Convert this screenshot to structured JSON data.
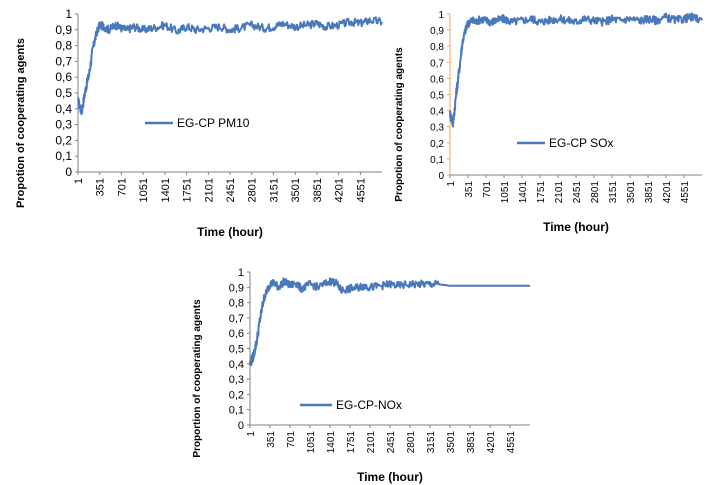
{
  "chart_data": [
    {
      "type": "line",
      "xlabel": "Time (hour)",
      "ylabel": "Propotion of cooperating  agents",
      "ylim": [
        0,
        1
      ],
      "yticks": [
        "0",
        "0,1",
        "0,2",
        "0,3",
        "0,4",
        "0,5",
        "0,6",
        "0,7",
        "0,8",
        "0,9",
        "1"
      ],
      "xticks": [
        "1",
        "351",
        "701",
        "1051",
        "1401",
        "1751",
        "2101",
        "2451",
        "2801",
        "3151",
        "3501",
        "3851",
        "4201",
        "4551"
      ],
      "xlim": [
        1,
        4900
      ],
      "legend_position": "center",
      "grid": false,
      "series": [
        {
          "name": "EG-CP PM10",
          "color": "#4a78bd",
          "x": [
            1,
            60,
            120,
            180,
            240,
            300,
            351,
            420,
            500,
            600,
            701,
            800,
            900,
            1051,
            1200,
            1401,
            1600,
            1751,
            1900,
            2101,
            2300,
            2451,
            2600,
            2801,
            3000,
            3151,
            3300,
            3501,
            3700,
            3851,
            4000,
            4201,
            4400,
            4551,
            4700,
            4900
          ],
          "y": [
            0.45,
            0.38,
            0.52,
            0.62,
            0.78,
            0.88,
            0.93,
            0.92,
            0.9,
            0.93,
            0.91,
            0.9,
            0.92,
            0.9,
            0.91,
            0.93,
            0.89,
            0.92,
            0.9,
            0.91,
            0.92,
            0.9,
            0.91,
            0.93,
            0.91,
            0.92,
            0.94,
            0.92,
            0.93,
            0.94,
            0.92,
            0.93,
            0.95,
            0.94,
            0.96,
            0.95
          ]
        }
      ]
    },
    {
      "type": "line",
      "xlabel": "Time (hour)",
      "ylabel": "Propotion of cooperating agents",
      "ylim": [
        0,
        1
      ],
      "yticks": [
        "0",
        "0,1",
        "0,2",
        "0,3",
        "0,4",
        "0,5",
        "0,6",
        "0,7",
        "0,8",
        "0,9",
        "1"
      ],
      "xticks": [
        "1",
        "351",
        "701",
        "1051",
        "1401",
        "1751",
        "2101",
        "2451",
        "2801",
        "3151",
        "3501",
        "3851",
        "4201",
        "4551"
      ],
      "xlim": [
        1,
        4900
      ],
      "legend_position": "right",
      "grid": false,
      "series": [
        {
          "name": "EG-CP SOx",
          "color": "#4a78bd",
          "x": [
            1,
            60,
            120,
            180,
            240,
            300,
            351,
            420,
            500,
            600,
            701,
            800,
            900,
            1051,
            1200,
            1401,
            1600,
            1751,
            1900,
            2101,
            2300,
            2451,
            2600,
            2801,
            3000,
            3151,
            3300,
            3501,
            3700,
            3851,
            4000,
            4201,
            4400,
            4551,
            4700,
            4900
          ],
          "y": [
            0.38,
            0.32,
            0.5,
            0.65,
            0.82,
            0.9,
            0.94,
            0.96,
            0.95,
            0.97,
            0.96,
            0.95,
            0.96,
            0.97,
            0.95,
            0.96,
            0.97,
            0.95,
            0.96,
            0.97,
            0.96,
            0.95,
            0.97,
            0.96,
            0.95,
            0.97,
            0.96,
            0.97,
            0.96,
            0.97,
            0.96,
            0.98,
            0.96,
            0.97,
            0.98,
            0.96
          ]
        }
      ]
    },
    {
      "type": "line",
      "xlabel": "Time (hour)",
      "ylabel": "Proportion of cooperating agents",
      "ylim": [
        0,
        1
      ],
      "yticks": [
        "0",
        "0,1",
        "0,2",
        "0,3",
        "0,4",
        "0,5",
        "0,6",
        "0,7",
        "0,8",
        "0,9",
        "1"
      ],
      "xticks": [
        "1",
        "351",
        "701",
        "1051",
        "1401",
        "1751",
        "2101",
        "2451",
        "2801",
        "3151",
        "3501",
        "3851",
        "4201",
        "4551"
      ],
      "xlim": [
        1,
        4900
      ],
      "legend_position": "bottom",
      "grid": false,
      "series": [
        {
          "name": "EG-CP-NOx",
          "color": "#4a78bd",
          "x": [
            1,
            60,
            120,
            180,
            240,
            300,
            351,
            420,
            500,
            600,
            701,
            800,
            900,
            1051,
            1200,
            1401,
            1500,
            1600,
            1751,
            1900,
            2000,
            2101,
            2300,
            2451,
            2600,
            2801,
            3000,
            3151,
            3300,
            3501,
            3851,
            4201,
            4551,
            4900
          ],
          "y": [
            0.4,
            0.45,
            0.55,
            0.7,
            0.82,
            0.88,
            0.92,
            0.93,
            0.9,
            0.94,
            0.91,
            0.93,
            0.89,
            0.92,
            0.9,
            0.94,
            0.93,
            0.88,
            0.89,
            0.9,
            0.91,
            0.9,
            0.91,
            0.92,
            0.91,
            0.92,
            0.92,
            0.92,
            0.92,
            0.91,
            0.91,
            0.91,
            0.91,
            0.91
          ]
        }
      ]
    }
  ]
}
